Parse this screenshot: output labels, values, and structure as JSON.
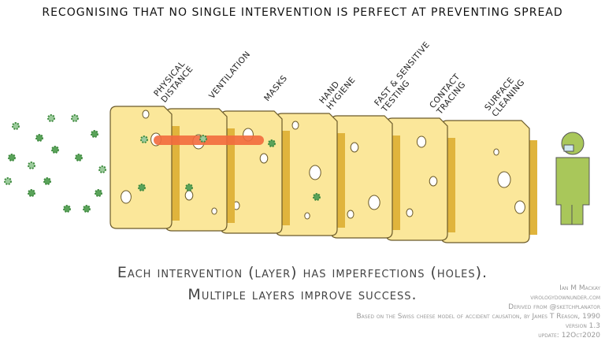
{
  "title": "RECOGNISING THAT NO SINGLE INTERVENTION IS PERFECT AT PREVENTING SPREAD",
  "layers": [
    {
      "lines": [
        "PHYSICAL",
        "DISTANCE"
      ]
    },
    {
      "lines": [
        "VENTILATION"
      ]
    },
    {
      "lines": [
        "MASKS"
      ]
    },
    {
      "lines": [
        "HAND",
        "HYGIENE"
      ]
    },
    {
      "lines": [
        "FAST & SENSITIVE",
        "TESTING"
      ]
    },
    {
      "lines": [
        "CONTACT",
        "TRACING"
      ]
    },
    {
      "lines": [
        "SURFACE",
        "CLEANING"
      ]
    }
  ],
  "caption": [
    "Each intervention (layer) has imperfections (holes).",
    "Multiple layers improve success."
  ],
  "credits": [
    "Ian M Mackay",
    "virologydownunder.com",
    "Derived from @sketchplanator",
    "Based on the Swiss cheese model of accident causation, by James T Reason, 1990",
    "version 1.3",
    "update: 12Oct2020"
  ]
}
